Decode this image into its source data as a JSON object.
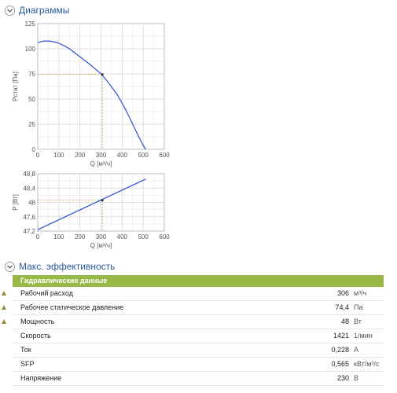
{
  "sections": {
    "diagrams": {
      "title": "Диаграммы"
    },
    "max_eff": {
      "title": "Макс. эффективность"
    }
  },
  "chart_data": [
    {
      "type": "line",
      "title": "",
      "xlabel": "Q [м³/ч]",
      "ylabel": "Pстат [Па]",
      "xlim": [
        0,
        600
      ],
      "ylim": [
        0,
        125
      ],
      "x_ticks": [
        "0",
        "100",
        "200",
        "300",
        "400",
        "500",
        "600"
      ],
      "y_ticks": [
        "0",
        "25",
        "50",
        "75",
        "100",
        "125"
      ],
      "grid": true,
      "series": [
        {
          "color": "#2f4fd4",
          "x": [
            0,
            25,
            50,
            75,
            100,
            125,
            150,
            175,
            200,
            225,
            250,
            275,
            300,
            325,
            350,
            375,
            400,
            425,
            450,
            475,
            500,
            512
          ],
          "y": [
            106,
            107.5,
            107.7,
            107,
            105.5,
            103,
            100,
            96,
            92,
            88,
            84,
            79.5,
            75,
            69,
            62,
            55,
            46,
            36,
            25,
            14,
            4,
            0
          ]
        }
      ],
      "operating_point": {
        "x": 306,
        "y": 74.4
      }
    },
    {
      "type": "line",
      "title": "",
      "xlabel": "Q [м³/ч]",
      "ylabel": "P [Вт]",
      "xlim": [
        0,
        600
      ],
      "ylim": [
        47.2,
        48.8
      ],
      "x_ticks": [
        "0",
        "100",
        "200",
        "300",
        "400",
        "500",
        "600"
      ],
      "y_ticks": [
        "47,2",
        "47,6",
        "48",
        "48,4",
        "48,8"
      ],
      "grid": true,
      "series": [
        {
          "color": "#2f4fd4",
          "x": [
            0,
            512
          ],
          "y": [
            47.24,
            48.65
          ]
        }
      ],
      "operating_point": {
        "x": 306,
        "y": 48.06
      }
    }
  ],
  "table": {
    "header": "Гидравлические данные",
    "rows": [
      {
        "label": "Рабочий расход",
        "value": "306",
        "unit": "м³/ч",
        "marked": true
      },
      {
        "label": "Рабочее статическое давление",
        "value": "74,4",
        "unit": "Па",
        "marked": true
      },
      {
        "label": "Мощность",
        "value": "48",
        "unit": "Вт",
        "marked": true
      },
      {
        "label": "Скорость",
        "value": "1421",
        "unit": "1/мин",
        "marked": false
      },
      {
        "label": "Ток",
        "value": "0,228",
        "unit": "А",
        "marked": false
      },
      {
        "label": "SFP",
        "value": "0,565",
        "unit": "кВт/м³/с",
        "marked": false
      },
      {
        "label": "Напряжение",
        "value": "230",
        "unit": "В",
        "marked": false
      }
    ]
  },
  "colors": {
    "accent": "#98b945",
    "link": "#2a5b9c",
    "curve": "#2f4fd4",
    "guide": "#7aa33a",
    "op_guide": "#c8a02a"
  }
}
